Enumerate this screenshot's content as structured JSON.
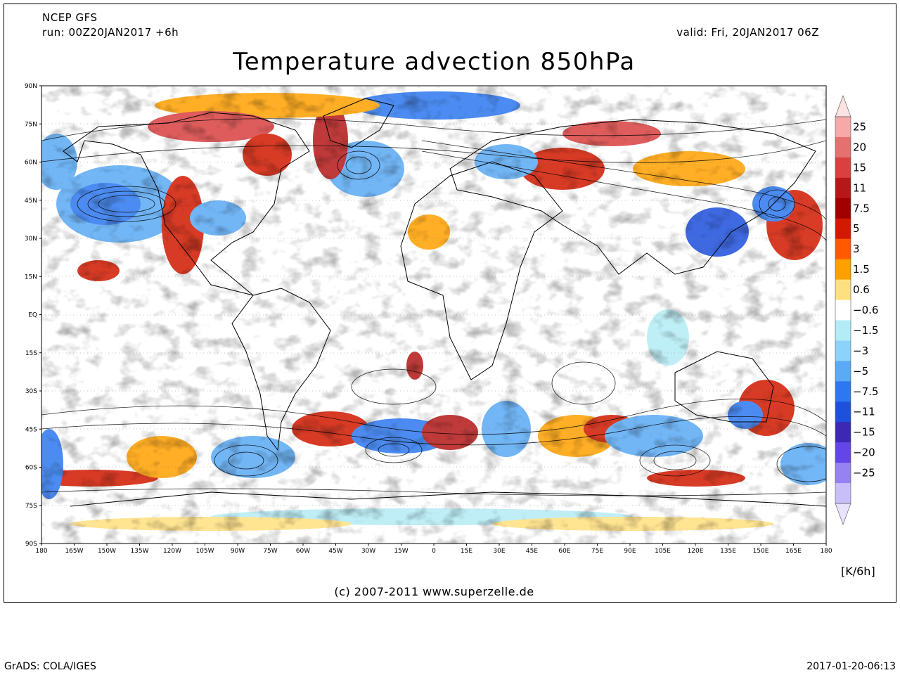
{
  "header": {
    "model": "NCEP GFS",
    "run": "run: 00Z20JAN2017 +6h",
    "valid": "valid: Fri, 20JAN2017 06Z",
    "title": "Temperature advection 850hPa"
  },
  "map": {
    "lat_labels": [
      "90N",
      "75N",
      "60N",
      "45N",
      "30N",
      "15N",
      "EQ",
      "15S",
      "30S",
      "45S",
      "60S",
      "75S",
      "90S"
    ],
    "lon_labels": [
      "180",
      "165W",
      "150W",
      "135W",
      "120W",
      "105W",
      "90W",
      "75W",
      "60W",
      "45W",
      "30W",
      "15W",
      "0",
      "15E",
      "30E",
      "45E",
      "60E",
      "75E",
      "90E",
      "105E",
      "120E",
      "135E",
      "150E",
      "165E",
      "180"
    ]
  },
  "colorbar": {
    "labels": [
      "25",
      "20",
      "15",
      "11",
      "7.5",
      "5",
      "3",
      "1.5",
      "0.6",
      "-0.6",
      "-1.5",
      "-3",
      "-5",
      "-7.5",
      "-11",
      "-15",
      "-20",
      "-25"
    ],
    "colors": [
      "#f5a9a9",
      "#e57070",
      "#d94040",
      "#b51818",
      "#a00000",
      "#d21a00",
      "#ff5a00",
      "#ffa000",
      "#ffe080",
      "#ffffff",
      "#b4ecf5",
      "#8cd2fa",
      "#5aaaf5",
      "#2d78f0",
      "#1e50dc",
      "#3c28b4",
      "#6446e6",
      "#9682f0",
      "#c8bef8"
    ],
    "units": "[K/6h]"
  },
  "footer": {
    "copyright": "(c) 2007-2011 www.superzelle.de",
    "grads": "GrADS: COLA/IGES",
    "timestamp": "2017-01-20-06:13"
  }
}
